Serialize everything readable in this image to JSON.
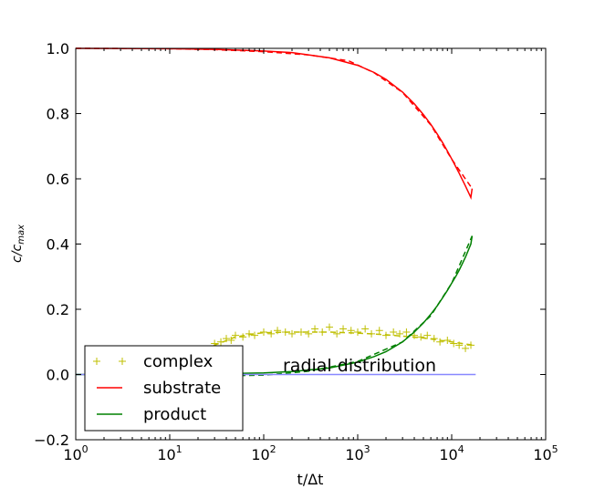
{
  "chart_data": {
    "type": "line",
    "title": "",
    "xlabel": "t/Δt",
    "ylabel": "c/c_max",
    "xscale": "log",
    "xlim": [
      1,
      100000
    ],
    "ylim": [
      -0.2,
      1.0
    ],
    "x_ticks": [
      {
        "value": 1,
        "base": "10",
        "exp": "0"
      },
      {
        "value": 10,
        "base": "10",
        "exp": "1"
      },
      {
        "value": 100,
        "base": "10",
        "exp": "2"
      },
      {
        "value": 1000,
        "base": "10",
        "exp": "3"
      },
      {
        "value": 10000,
        "base": "10",
        "exp": "4"
      },
      {
        "value": 100000,
        "base": "10",
        "exp": "5"
      }
    ],
    "y_ticks": [
      {
        "value": 1.0,
        "label": "1.0"
      },
      {
        "value": 0.8,
        "label": "0.8"
      },
      {
        "value": 0.6,
        "label": "0.6"
      },
      {
        "value": 0.4,
        "label": "0.4"
      },
      {
        "value": 0.2,
        "label": "0.2"
      },
      {
        "value": 0.0,
        "label": "0.0"
      },
      {
        "value": -0.2,
        "label": "−0.2"
      }
    ],
    "annotation": "radial distribution",
    "legend_position": "lower-left",
    "series": [
      {
        "name": "complex",
        "style": "markers",
        "marker": "+",
        "color": "#bfbf00",
        "x": [
          30,
          35,
          40,
          45,
          50,
          60,
          70,
          80,
          100,
          120,
          140,
          170,
          200,
          250,
          300,
          350,
          420,
          500,
          600,
          700,
          850,
          1000,
          1200,
          1400,
          1700,
          2000,
          2400,
          2800,
          3300,
          4000,
          4700,
          5500,
          6500,
          7500,
          9000,
          10500,
          12000,
          14000,
          16000
        ],
        "y": [
          0.095,
          0.1,
          0.11,
          0.105,
          0.12,
          0.115,
          0.125,
          0.12,
          0.13,
          0.125,
          0.135,
          0.13,
          0.125,
          0.13,
          0.125,
          0.14,
          0.13,
          0.145,
          0.125,
          0.14,
          0.135,
          0.13,
          0.14,
          0.125,
          0.135,
          0.12,
          0.13,
          0.125,
          0.13,
          0.12,
          0.115,
          0.12,
          0.11,
          0.1,
          0.105,
          0.095,
          0.09,
          0.08,
          0.09
        ]
      },
      {
        "name": "",
        "style": "dashed",
        "color": "#bfbf00",
        "x": [
          1,
          3,
          6,
          10,
          15,
          20,
          30,
          50,
          80,
          100,
          200,
          500,
          1000,
          2000,
          5000,
          10000,
          17000
        ],
        "y": [
          0.0,
          0.0,
          0.0,
          0.005,
          0.03,
          0.06,
          0.09,
          0.115,
          0.125,
          0.128,
          0.13,
          0.13,
          0.127,
          0.122,
          0.112,
          0.1,
          0.09
        ]
      },
      {
        "name": "substrate",
        "style": "solid",
        "color": "#ff0000",
        "x": [
          1,
          10,
          30,
          100,
          200,
          500,
          1000,
          1500,
          2000,
          3000,
          4000,
          5000,
          6000,
          7000,
          8000,
          9000,
          10000,
          11000,
          12000,
          13000,
          14000,
          15000,
          16000,
          16500
        ],
        "y": [
          1.0,
          0.999,
          0.997,
          0.992,
          0.987,
          0.971,
          0.948,
          0.926,
          0.905,
          0.866,
          0.83,
          0.797,
          0.767,
          0.738,
          0.711,
          0.685,
          0.661,
          0.638,
          0.617,
          0.597,
          0.578,
          0.56,
          0.543,
          0.57
        ]
      },
      {
        "name": "",
        "style": "dashed",
        "color": "#ff0000",
        "x": [
          1,
          10,
          30,
          100,
          300,
          800,
          1500,
          3000,
          6000,
          10000,
          16500
        ],
        "y": [
          1.0,
          0.999,
          0.996,
          0.99,
          0.98,
          0.962,
          0.925,
          0.865,
          0.765,
          0.66,
          0.57
        ]
      },
      {
        "name": "product",
        "style": "solid",
        "color": "#008000",
        "x": [
          1,
          10,
          30,
          100,
          200,
          500,
          1000,
          1500,
          2000,
          3000,
          4000,
          5000,
          6000,
          7000,
          8000,
          9000,
          10000,
          11000,
          12000,
          13000,
          14000,
          15000,
          16000,
          16500
        ],
        "y": [
          0.0,
          0.0,
          0.002,
          0.005,
          0.009,
          0.02,
          0.038,
          0.055,
          0.07,
          0.1,
          0.13,
          0.158,
          0.185,
          0.21,
          0.235,
          0.258,
          0.28,
          0.3,
          0.32,
          0.34,
          0.36,
          0.38,
          0.4,
          0.425
        ]
      },
      {
        "name": "",
        "style": "dashed",
        "color": "#008000",
        "x": [
          1,
          10,
          30,
          60,
          100,
          300,
          1000,
          3000,
          6000,
          10000,
          16500
        ],
        "y": [
          0.0,
          0.0,
          0.0,
          -0.003,
          -0.002,
          0.01,
          0.04,
          0.1,
          0.18,
          0.28,
          0.425
        ]
      },
      {
        "name": "",
        "style": "solid",
        "color": "#8888ff",
        "x": [
          1,
          18000
        ],
        "y": [
          0.0,
          0.0
        ]
      }
    ],
    "legend": [
      {
        "label": "complex",
        "style": "markers",
        "color": "#bfbf00"
      },
      {
        "label": "substrate",
        "style": "solid",
        "color": "#ff0000"
      },
      {
        "label": " product",
        "style": "solid",
        "color": "#008000"
      }
    ]
  }
}
